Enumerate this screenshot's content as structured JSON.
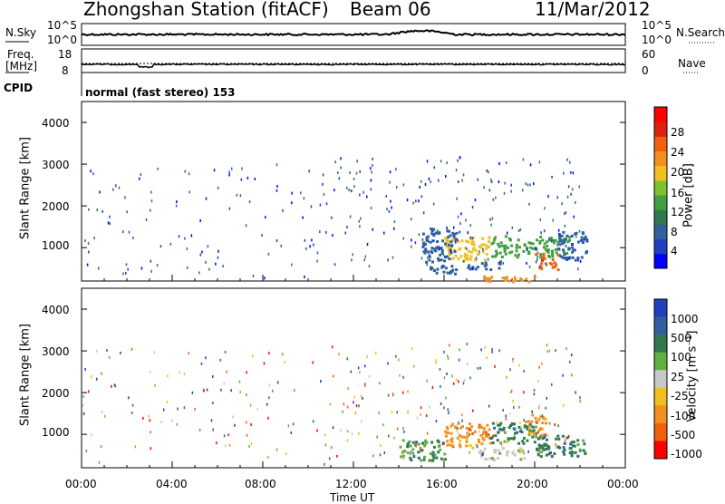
{
  "header": {
    "station": "Zhongshan Station (fitACF)",
    "beam": "Beam 06",
    "date": "11/Mar/2012"
  },
  "summary_panel": {
    "nsky_label": "N.Sky",
    "nsky_ticks": [
      "10^5",
      "10^0"
    ],
    "nsearch_label": "N.Search",
    "nsearch_ticks": [
      "10^5",
      "10^0"
    ],
    "freq_label_line1": "Freq.",
    "freq_label_line2": "[MHz]",
    "freq_ticks": [
      "18",
      "8"
    ],
    "nave_label": "Nave",
    "nave_ticks": [
      "60",
      "0"
    ],
    "cpid_label": "CPID",
    "cpid_text": "normal (fast stereo) 153"
  },
  "colors": {
    "power_scale": [
      "#0000ff",
      "#2040c0",
      "#3060a0",
      "#307850",
      "#40a040",
      "#80c030",
      "#f0c020",
      "#f09020",
      "#f06010",
      "#e02010",
      "#ff0000"
    ],
    "velocity_scale": [
      "#2040c0",
      "#3060a0",
      "#307850",
      "#60b040",
      "#c8c8c8",
      "#f0c020",
      "#f09020",
      "#f06010",
      "#ff0000"
    ]
  },
  "chart_data": [
    {
      "type": "heatmap",
      "panel": "power",
      "ylabel": "Slant Range [km]",
      "ylim": [
        200,
        4500
      ],
      "yticks": [
        "4000",
        "3000",
        "2000",
        "1000"
      ],
      "xlim": [
        0,
        24
      ],
      "colorbar_label": "Power [dB]",
      "colorbar_ticks": [
        "28",
        "24",
        "20",
        "16",
        "12",
        "8",
        "4"
      ],
      "colorbar_range": [
        0,
        32
      ],
      "regions": [
        {
          "t": [
            16.0,
            18.0
          ],
          "r": [
            700,
            1300
          ],
          "value": 20
        },
        {
          "t": [
            17.0,
            18.5
          ],
          "r": [
            500,
            700
          ],
          "value": 8
        },
        {
          "t": [
            18.0,
            21.5
          ],
          "r": [
            800,
            1300
          ],
          "value": 12
        },
        {
          "t": [
            20.0,
            21.0
          ],
          "r": [
            500,
            900
          ],
          "value": 26
        },
        {
          "t": [
            21.0,
            22.3
          ],
          "r": [
            700,
            1400
          ],
          "value": 6
        },
        {
          "t": [
            15.0,
            16.5
          ],
          "r": [
            400,
            1500
          ],
          "value": 6
        },
        {
          "t": [
            17.5,
            20.0
          ],
          "r": [
            200,
            350
          ],
          "value": 22
        }
      ]
    },
    {
      "type": "heatmap",
      "panel": "velocity",
      "ylabel": "Slant Range [km]",
      "ylim": [
        200,
        4500
      ],
      "yticks": [
        "4000",
        "3000",
        "2000",
        "1000"
      ],
      "xlim": [
        0,
        24
      ],
      "xticks": [
        "00:00",
        "04:00",
        "08:00",
        "12:00",
        "16:00",
        "20:00",
        "00:00"
      ],
      "xlabel": "Time UT",
      "colorbar_label": "Velocity [m s⁻¹]",
      "colorbar_ticks": [
        "1000",
        "500",
        "100",
        "25",
        "-25",
        "-100",
        "-500",
        "-1000"
      ],
      "regions": [
        {
          "t": [
            16.0,
            18.0
          ],
          "r": [
            700,
            1300
          ],
          "value": -300
        },
        {
          "t": [
            17.5,
            19.5
          ],
          "r": [
            400,
            700
          ],
          "value": 0
        },
        {
          "t": [
            18.0,
            20.0
          ],
          "r": [
            800,
            1300
          ],
          "value": 200
        },
        {
          "t": [
            20.0,
            22.3
          ],
          "r": [
            500,
            1000
          ],
          "value": 300
        },
        {
          "t": [
            19.5,
            20.5
          ],
          "r": [
            1000,
            1500
          ],
          "value": -300
        },
        {
          "t": [
            14.0,
            16.0
          ],
          "r": [
            400,
            900
          ],
          "value": 100
        }
      ]
    }
  ]
}
